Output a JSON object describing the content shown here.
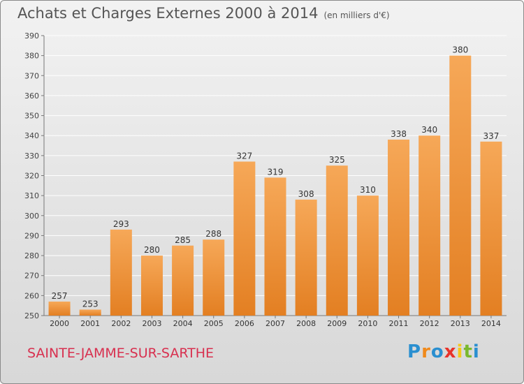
{
  "header": {
    "title": "Achats et Charges Externes 2000 à 2014",
    "subtitle": "(en milliers d'€)"
  },
  "footer": {
    "commune": "SAINTE-JAMME-SUR-SARTHE",
    "logo_letters": [
      "P",
      "r",
      "o",
      "x",
      "i",
      "t",
      "i"
    ],
    "logo_colors": [
      "#2a8fd0",
      "#f08a1c",
      "#2a8fd0",
      "#e8332a",
      "#f5c81a",
      "#7ab82e",
      "#2a8fd0"
    ]
  },
  "colors": {
    "bar_top": "#f6a858",
    "bar_bottom": "#e37f22",
    "commune_label": "#d8304f",
    "grid": "#ffffff"
  },
  "chart_data": {
    "type": "bar",
    "categories": [
      "2000",
      "2001",
      "2002",
      "2003",
      "2004",
      "2005",
      "2006",
      "2007",
      "2008",
      "2009",
      "2010",
      "2011",
      "2012",
      "2013",
      "2014"
    ],
    "values": [
      257,
      253,
      293,
      280,
      285,
      288,
      327,
      319,
      308,
      325,
      310,
      338,
      340,
      380,
      337
    ],
    "ylim": [
      250,
      390
    ],
    "yticks": [
      250,
      260,
      270,
      280,
      290,
      300,
      310,
      320,
      330,
      340,
      350,
      360,
      370,
      380,
      390
    ],
    "grid": true,
    "data_labels": true
  }
}
